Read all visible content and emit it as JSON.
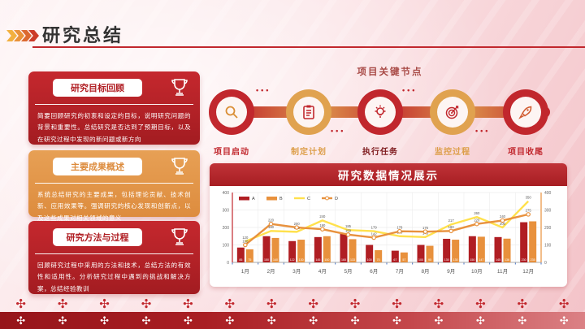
{
  "header": {
    "title": "研究总结"
  },
  "cards": [
    {
      "title": "研究目标回顾",
      "body": "简要回顾研究的初衷和设定的目标，说明研究问题的背景和重要性。总结研究是否达到了预期目标，以及在研究过程中发现的新问题或新方向",
      "theme": "red",
      "icon": "trophy-icon"
    },
    {
      "title": "主要成果概述",
      "body": "系统总结研究的主要成果，包括理论贡献、技术创新、应用效果等。强调研究的核心发现和创新点，以及这些成果对相关领域的意义",
      "theme": "orange",
      "icon": "trophy-icon"
    },
    {
      "title": "研究方法与过程",
      "body": "回顾研究过程中采用的方法和技术，总结方法的有效性和适用性。分析研究过程中遇到的挑战和解决方案，总结经验教训",
      "theme": "red",
      "icon": "trophy-icon"
    }
  ],
  "flow": {
    "title": "项目关键节点",
    "nodes": [
      {
        "label": "项目启动",
        "icon": "magnifier-icon",
        "ring": "red",
        "label_style": "fl-red"
      },
      {
        "label": "制定计划",
        "icon": "clipboard-icon",
        "ring": "orange",
        "label_style": "fl-orange"
      },
      {
        "label": "执行任务",
        "icon": "lightbulb-icon",
        "ring": "red",
        "label_style": "fl-dark"
      },
      {
        "label": "监控过程",
        "icon": "target-icon",
        "ring": "orange",
        "label_style": "fl-orange"
      },
      {
        "label": "项目收尾",
        "icon": "rocket-icon",
        "ring": "red",
        "label_style": "fl-red"
      }
    ]
  },
  "chart": {
    "title": "研究数据情况展示"
  },
  "chart_data": {
    "type": "bar+line",
    "title": "研究数据情况展示",
    "categories": [
      "1月",
      "2月",
      "3月",
      "4月",
      "5月",
      "6月",
      "7月",
      "8月",
      "9月",
      "10月",
      "11月",
      "12月"
    ],
    "series": [
      {
        "name": "A",
        "type": "bar",
        "color": "#b01e23",
        "values": [
          85,
          150,
          122,
          145,
          165,
          100,
          67,
          100,
          135,
          150,
          145,
          230
        ]
      },
      {
        "name": "B",
        "type": "bar",
        "color": "#e8913d",
        "values": [
          75,
          140,
          130,
          150,
          133,
          70,
          57,
          95,
          130,
          147,
          136,
          235
        ]
      },
      {
        "name": "C",
        "type": "line",
        "color": "#ffe14d",
        "values": [
          120,
          180,
          175,
          240,
          185,
          179,
          150,
          145,
          217,
          260,
          200,
          350
        ]
      },
      {
        "name": "D",
        "type": "line",
        "color": "#e8913d",
        "marker": true,
        "values": [
          100,
          220,
          200,
          190,
          159,
          142,
          178,
          176,
          180,
          220,
          240,
          275
        ]
      }
    ],
    "ylim": [
      0,
      400
    ],
    "yticks": [
      0,
      100,
      200,
      300,
      400
    ],
    "right_axis": true,
    "grid": true,
    "legend_position": "top-left",
    "xlabel": "",
    "ylabel": ""
  },
  "colors": {
    "accent_red": "#c1272d",
    "accent_orange": "#dd9f4b",
    "banner_red": "#a71d22",
    "background_pink": "#f8d9dd"
  },
  "decoration": {
    "glyph": "✣",
    "count_upper": 14,
    "count_band": 14
  }
}
